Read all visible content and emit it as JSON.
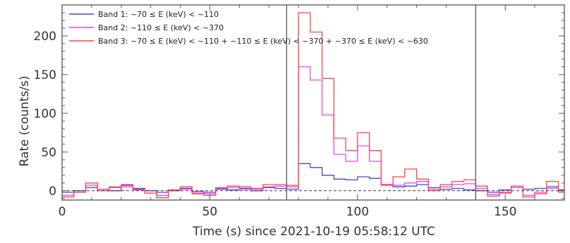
{
  "chart_data": {
    "type": "line",
    "step": true,
    "xlabel": "Time (s) since 2021-10-19 05:58:12 UTC",
    "ylabel": "Rate (counts/s)",
    "xlim": [
      0,
      170
    ],
    "ylim": [
      -12,
      240
    ],
    "xticks": [
      0,
      50,
      100,
      150
    ],
    "yticks": [
      0,
      50,
      100,
      150,
      200
    ],
    "bin_edges": [
      0,
      4,
      8,
      12,
      16,
      20,
      24,
      28,
      32,
      36,
      40,
      44,
      48,
      52,
      56,
      60,
      64,
      68,
      72,
      76,
      80,
      84,
      88,
      92,
      96,
      100,
      104,
      108,
      112,
      116,
      120,
      124,
      128,
      132,
      136,
      140,
      144,
      148,
      152,
      156,
      160,
      164,
      168,
      172
    ],
    "vertical_lines": [
      76,
      140
    ],
    "zero_line": 0,
    "legend_position": "top-left",
    "series": [
      {
        "name": "Band 1: ~70 ≤ E (keV) < ~110",
        "color": "#4444dd",
        "values": [
          -2,
          0,
          4,
          2,
          0,
          7,
          3,
          0,
          -2,
          1,
          3,
          -1,
          -2,
          2,
          1,
          3,
          0,
          4,
          3,
          2,
          35,
          30,
          20,
          15,
          14,
          18,
          16,
          8,
          5,
          6,
          8,
          4,
          2,
          3,
          1,
          0,
          -2,
          1,
          4,
          2,
          3,
          5,
          1
        ]
      },
      {
        "name": "Band 2: ~110 ≤ E (keV) < ~370",
        "color": "#ee44ee",
        "values": [
          -6,
          -2,
          7,
          0,
          4,
          5,
          1,
          -3,
          -6,
          0,
          2,
          -3,
          -4,
          3,
          4,
          2,
          2,
          5,
          6,
          5,
          160,
          143,
          98,
          47,
          38,
          58,
          38,
          7,
          7,
          10,
          12,
          0,
          5,
          8,
          9,
          3,
          -5,
          -2,
          4,
          -6,
          -2,
          3,
          0
        ]
      },
      {
        "name": "Band 3: ~70 ≤ E (keV) < ~110 + ~110 ≤ E (keV) < ~370 + ~370 ≤ E (keV) < ~630",
        "color": "#ff4444",
        "values": [
          -8,
          -2,
          10,
          2,
          5,
          8,
          2,
          -3,
          -9,
          1,
          5,
          -4,
          -6,
          4,
          6,
          5,
          3,
          8,
          8,
          7,
          230,
          205,
          145,
          68,
          52,
          75,
          52,
          8,
          18,
          28,
          15,
          2,
          8,
          12,
          14,
          6,
          -7,
          -3,
          6,
          -8,
          -4,
          12,
          -2
        ]
      }
    ]
  }
}
